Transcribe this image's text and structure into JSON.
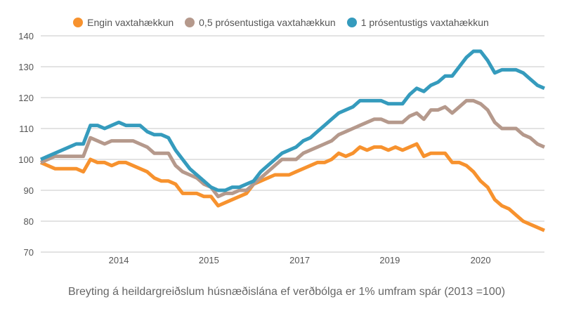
{
  "chart_data": {
    "type": "line",
    "title": "Breyting á heildargreiðslum húsnæðislána ef verðbólga er 1% umfram spár (2013 =100)",
    "xlabel": "",
    "ylabel": "",
    "ylim": [
      70,
      140
    ],
    "yticks": [
      70,
      80,
      90,
      100,
      110,
      120,
      130,
      140
    ],
    "xticks": [
      {
        "label": "2014",
        "index": 11
      },
      {
        "label": "2015",
        "index": 23.7
      },
      {
        "label": "2017",
        "index": 36.5
      },
      {
        "label": "2019",
        "index": 49.2
      },
      {
        "label": "2020",
        "index": 62
      }
    ],
    "grid": true,
    "legend_position": "top",
    "series": [
      {
        "name": "Engin vaxtahækkun",
        "color": "#f7922e",
        "values": [
          99,
          98,
          97,
          97,
          97,
          97,
          96,
          100,
          99,
          99,
          98,
          99,
          99,
          98,
          97,
          96,
          94,
          93,
          93,
          92,
          89,
          89,
          89,
          88,
          88,
          85,
          86,
          87,
          88,
          89,
          92,
          93,
          94,
          95,
          95,
          95,
          96,
          97,
          98,
          99,
          99,
          100,
          102,
          101,
          102,
          104,
          103,
          104,
          104,
          103,
          104,
          103,
          104,
          105,
          101,
          102,
          102,
          102,
          99,
          99,
          98,
          96,
          93,
          91,
          87,
          85,
          84,
          82,
          80,
          79,
          78,
          77
        ]
      },
      {
        "name": "0,5 prósentustiga vaxtahækkun",
        "color": "#b5998c",
        "values": [
          99,
          100,
          101,
          101,
          101,
          101,
          101,
          107,
          106,
          105,
          106,
          106,
          106,
          106,
          105,
          104,
          102,
          102,
          102,
          98,
          96,
          95,
          94,
          92,
          91,
          88,
          89,
          89,
          90,
          90,
          92,
          94,
          96,
          98,
          100,
          100,
          100,
          102,
          103,
          104,
          105,
          106,
          108,
          109,
          110,
          111,
          112,
          113,
          113,
          112,
          112,
          112,
          114,
          115,
          113,
          116,
          116,
          117,
          115,
          117,
          119,
          119,
          118,
          116,
          112,
          110,
          110,
          110,
          108,
          107,
          105,
          104
        ]
      },
      {
        "name": "1 prósentustigs vaxtahækkun",
        "color": "#359bbd",
        "values": [
          100,
          101,
          102,
          103,
          104,
          105,
          105,
          111,
          111,
          110,
          111,
          112,
          111,
          111,
          111,
          109,
          108,
          108,
          107,
          103,
          100,
          97,
          95,
          93,
          91,
          90,
          90,
          91,
          91,
          92,
          93,
          96,
          98,
          100,
          102,
          103,
          104,
          106,
          107,
          109,
          111,
          113,
          115,
          116,
          117,
          119,
          119,
          119,
          119,
          118,
          118,
          118,
          121,
          123,
          122,
          124,
          125,
          127,
          127,
          130,
          133,
          135,
          135,
          132,
          128,
          129,
          129,
          129,
          128,
          126,
          124,
          123
        ]
      }
    ]
  }
}
